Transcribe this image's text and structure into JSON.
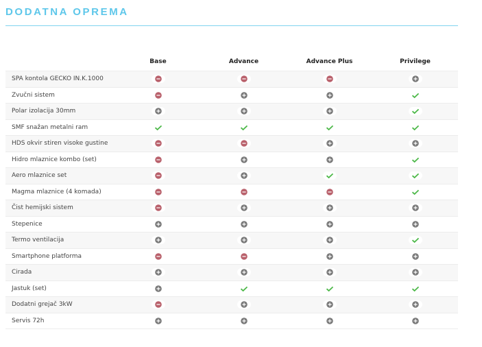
{
  "header": {
    "title": "DODATNA OPREMA"
  },
  "table": {
    "columns": [
      "Base",
      "Advance",
      "Advance Plus",
      "Privilege"
    ],
    "rows": [
      {
        "label": "SPA kontola GECKO IN.K.1000",
        "cells": [
          "minus",
          "minus",
          "minus",
          "plus"
        ]
      },
      {
        "label": "Zvučni sistem",
        "cells": [
          "minus",
          "plus",
          "plus",
          "check"
        ]
      },
      {
        "label": "Polar izolacija 30mm",
        "cells": [
          "plus",
          "plus",
          "plus",
          "check"
        ]
      },
      {
        "label": "SMF snažan metalni ram",
        "cells": [
          "check",
          "check",
          "check",
          "check"
        ]
      },
      {
        "label": "HDS okvir stiren visoke gustine",
        "cells": [
          "minus",
          "minus",
          "plus",
          "plus"
        ]
      },
      {
        "label": "Hidro mlaznice kombo (set)",
        "cells": [
          "minus",
          "plus",
          "plus",
          "check"
        ]
      },
      {
        "label": "Aero mlaznice set",
        "cells": [
          "minus",
          "plus",
          "check",
          "check"
        ]
      },
      {
        "label": "Magma mlaznice (4 komada)",
        "cells": [
          "minus",
          "minus",
          "minus",
          "check"
        ]
      },
      {
        "label": "Čist hemijski sistem",
        "cells": [
          "minus",
          "plus",
          "plus",
          "plus"
        ]
      },
      {
        "label": "Stepenice",
        "cells": [
          "plus",
          "plus",
          "plus",
          "plus"
        ]
      },
      {
        "label": "Termo ventilacija",
        "cells": [
          "plus",
          "plus",
          "plus",
          "check"
        ]
      },
      {
        "label": "Smartphone platforma",
        "cells": [
          "minus",
          "minus",
          "plus",
          "plus"
        ]
      },
      {
        "label": "Cirada",
        "cells": [
          "plus",
          "plus",
          "plus",
          "plus"
        ]
      },
      {
        "label": "Jastuk (set)",
        "cells": [
          "plus",
          "check",
          "check",
          "check"
        ]
      },
      {
        "label": "Dodatni grejač 3kW",
        "cells": [
          "minus",
          "plus",
          "plus",
          "plus"
        ]
      },
      {
        "label": "Servis 72h",
        "cells": [
          "plus",
          "plus",
          "plus",
          "plus"
        ]
      }
    ]
  }
}
